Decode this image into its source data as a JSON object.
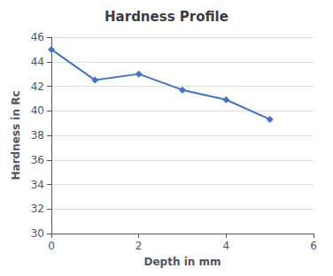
{
  "chart_data": {
    "type": "line",
    "title": "Hardness Profile",
    "xlabel": "Depth in mm",
    "ylabel": "Hardness in Rc",
    "x": [
      0,
      1,
      2,
      3,
      4,
      5
    ],
    "values": [
      45.0,
      42.5,
      43.0,
      41.7,
      40.9,
      39.3
    ],
    "xlim": [
      0,
      6
    ],
    "ylim": [
      30,
      46
    ],
    "xticks": [
      0,
      2,
      4,
      6
    ],
    "yticks": [
      30,
      32,
      34,
      36,
      38,
      40,
      42,
      44,
      46
    ],
    "color": "#4472C4",
    "marker": "diamond",
    "grid": true
  }
}
